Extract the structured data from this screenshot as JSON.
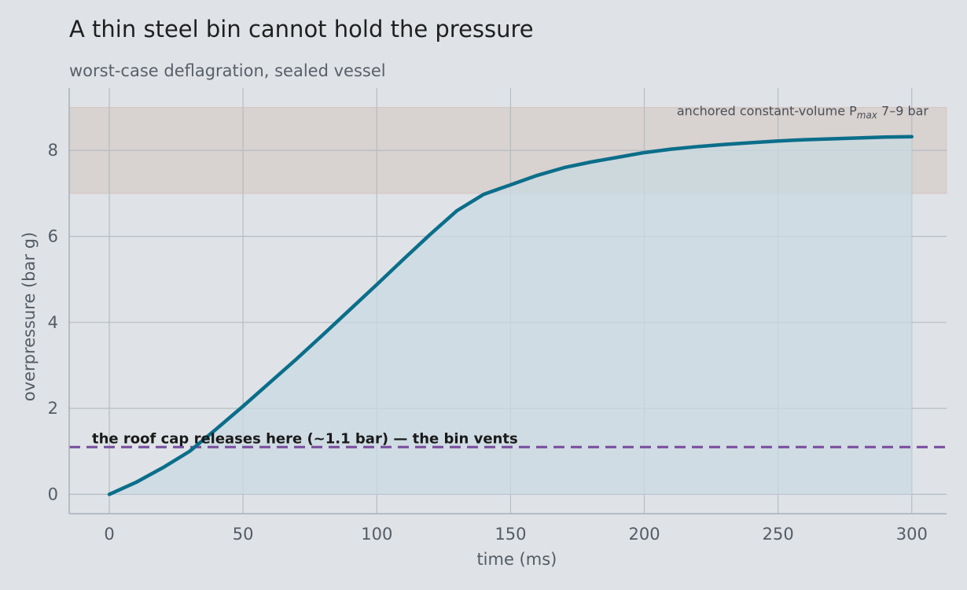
{
  "title": "A thin steel bin cannot hold the pressure",
  "subtitle": "worst-case deflagration, sealed vessel",
  "chart_data": {
    "type": "area",
    "xlabel": "time  (ms)",
    "ylabel": "overpressure  (bar g)",
    "xlim": [
      -15,
      313
    ],
    "ylim": [
      -0.45,
      9.45
    ],
    "xticks": [
      0,
      50,
      100,
      150,
      200,
      250,
      300
    ],
    "yticks": [
      0,
      2,
      4,
      6,
      8
    ],
    "grid": true,
    "series": [
      {
        "x": [
          0,
          10,
          20,
          30,
          40,
          50,
          60,
          70,
          80,
          90,
          100,
          110,
          120,
          130,
          140,
          150,
          160,
          170,
          180,
          190,
          200,
          210,
          220,
          230,
          240,
          250,
          260,
          270,
          280,
          290,
          300
        ],
        "y": [
          0,
          0.28,
          0.62,
          1.0,
          1.52,
          2.05,
          2.6,
          3.15,
          3.72,
          4.3,
          4.88,
          5.47,
          6.05,
          6.6,
          6.98,
          7.2,
          7.42,
          7.6,
          7.73,
          7.84,
          7.95,
          8.03,
          8.09,
          8.14,
          8.18,
          8.22,
          8.25,
          8.27,
          8.29,
          8.31,
          8.32
        ],
        "color": "#0b6e8a",
        "fill": "#c9dae2"
      }
    ],
    "band": {
      "y_from": 7,
      "y_to": 9,
      "label_main": "anchored constant-volume P",
      "label_sub": "max",
      "label_end": " 7–9 bar",
      "color": "#d8d2d0"
    },
    "reference_line": {
      "y": 1.1,
      "label": "the roof cap releases here (~1.1 bar) — the bin vents",
      "color": "#7b4fa0"
    }
  }
}
